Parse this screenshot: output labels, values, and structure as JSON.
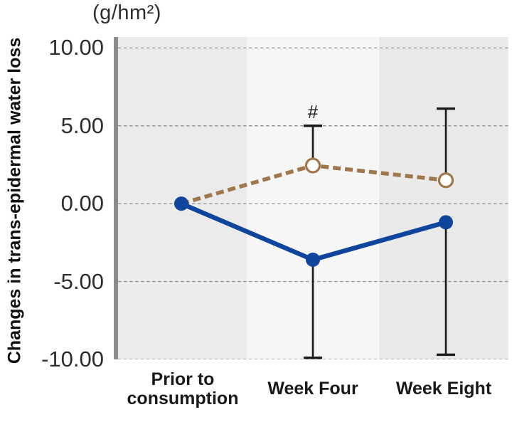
{
  "chart_data": {
    "type": "line",
    "title": "",
    "ylabel": "Changes in trans-epidermal water loss",
    "unit": "(g/hm²)",
    "categories": [
      "Prior to consumption",
      "Week Four",
      "Week Eight"
    ],
    "y_ticks": [
      10,
      5,
      0,
      -5,
      -10
    ],
    "y_tick_labels": [
      "10.00",
      "5.00",
      "0.00",
      "-5.00",
      "-10.00"
    ],
    "ylim": [
      -10,
      10.7
    ],
    "grid": "dashed-horizontal",
    "legend": "none",
    "plot_band_colors": [
      "#ebebeb",
      "#f6f6f6",
      "#eaeaea"
    ],
    "series": [
      {
        "name": "open-circle-dashed-series",
        "line_style": "dashed",
        "marker": "open-circle",
        "color": "#a0764b",
        "values": [
          0.0,
          2.45,
          1.5
        ],
        "error_bar_ends": [
          null,
          5.0,
          6.1
        ],
        "show_marker": [
          false,
          true,
          true
        ]
      },
      {
        "name": "filled-circle-solid-series",
        "line_style": "solid",
        "marker": "filled-circle",
        "color": "#10459d",
        "values": [
          0.0,
          -3.6,
          -1.2
        ],
        "error_bar_ends": [
          null,
          -9.9,
          -9.7
        ],
        "show_marker": [
          true,
          true,
          true
        ]
      }
    ],
    "annotations": [
      {
        "text": "#",
        "category_index": 1,
        "y": 5.9
      }
    ]
  },
  "colors": {
    "axis_bar": "#8d8d8d",
    "gridline": "#999999",
    "error_bar": "#1a1a1a",
    "annotation_text": "#1a1a1a"
  }
}
